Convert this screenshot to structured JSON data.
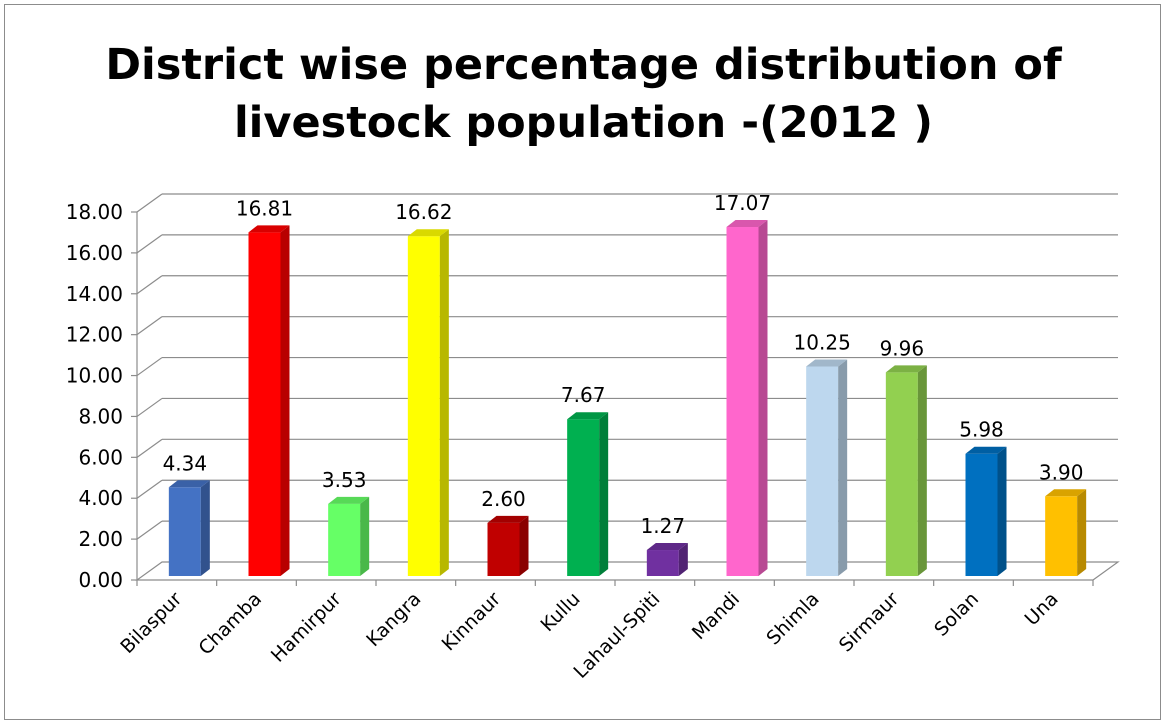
{
  "chart_data": {
    "type": "bar",
    "title_lines": [
      "District wise percentage distribution of",
      "livestock population -(2012 )"
    ],
    "categories": [
      "Bilaspur",
      "Chamba",
      "Hamirpur",
      "Kangra",
      "Kinnaur",
      "Kullu",
      "Lahaul-Spiti",
      "Mandi",
      "Shimla",
      "Sirmaur",
      "Solan",
      "Una"
    ],
    "values": [
      4.34,
      16.81,
      3.53,
      16.62,
      2.6,
      7.67,
      1.27,
      17.07,
      10.25,
      9.96,
      5.98,
      3.9
    ],
    "value_labels": [
      "4.34",
      "16.81",
      "3.53",
      "16.62",
      "2.60",
      "7.67",
      "1.27",
      "17.07",
      "10.25",
      "9.96",
      "5.98",
      "3.90"
    ],
    "colors": [
      "#4472C4",
      "#FF0000",
      "#66FF66",
      "#FFFF00",
      "#C00000",
      "#00B050",
      "#7030A0",
      "#FF66CC",
      "#BDD7EE",
      "#92D050",
      "#0070C0",
      "#FFC000"
    ],
    "ylim": [
      0,
      18
    ],
    "yticks": [
      "0.00",
      "2.00",
      "4.00",
      "6.00",
      "8.00",
      "10.00",
      "12.00",
      "14.00",
      "16.00",
      "18.00"
    ],
    "xlabel": "",
    "ylabel": "",
    "grid": true,
    "style": "3d-column"
  }
}
